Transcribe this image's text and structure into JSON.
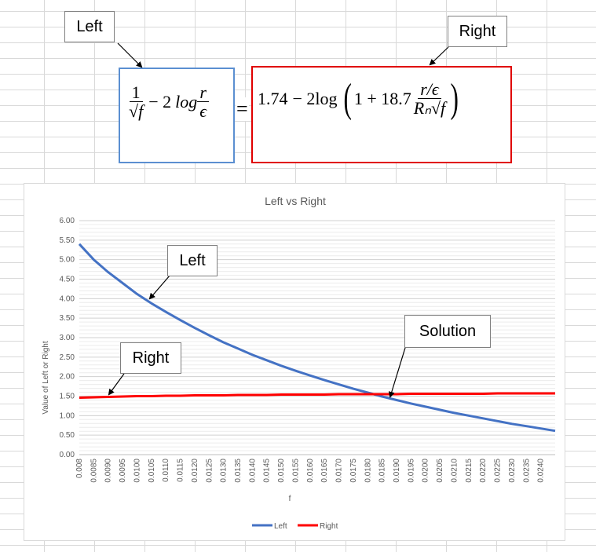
{
  "callouts": {
    "top_left": "Left",
    "top_right": "Right",
    "chart_left": "Left",
    "chart_right": "Right",
    "chart_solution": "Solution"
  },
  "equation": {
    "left": {
      "one": "1",
      "sqrt_f": "√f",
      "minus_two_log": "− 2",
      "log": "log",
      "r": "r",
      "eps": "ϵ"
    },
    "equals": "=",
    "right": {
      "const": "1.74",
      "minus_two_log": "− 2log",
      "one_plus": "1 + 18.7",
      "r_over_eps": "r/ϵ",
      "rn_sqrt_f": "Rₙ√f"
    }
  },
  "colors": {
    "left_series": "#4472c4",
    "right_series": "#ff0000",
    "left_box_border": "#5b8fd1",
    "right_box_border": "#e00000"
  },
  "chart_data": {
    "type": "line",
    "title": "Left vs Right",
    "xlabel": "f",
    "ylabel": "Value of Left or Right",
    "ylim": [
      0,
      6
    ],
    "y_ticks": [
      "0.00",
      "0.50",
      "1.00",
      "1.50",
      "2.00",
      "2.50",
      "3.00",
      "3.50",
      "4.00",
      "4.50",
      "5.00",
      "5.50",
      "6.00"
    ],
    "x_ticks": [
      "0.008",
      "0.0085",
      "0.0090",
      "0.0095",
      "0.0100",
      "0.0105",
      "0.0110",
      "0.0115",
      "0.0120",
      "0.0125",
      "0.0130",
      "0.0135",
      "0.0140",
      "0.0145",
      "0.0150",
      "0.0155",
      "0.0160",
      "0.0165",
      "0.0170",
      "0.0175",
      "0.0180",
      "0.0185",
      "0.0190",
      "0.0195",
      "0.0200",
      "0.0205",
      "0.0210",
      "0.0215",
      "0.0220",
      "0.0225",
      "0.0230",
      "0.0235",
      "0.0240"
    ],
    "x": [
      0.008,
      0.0085,
      0.009,
      0.0095,
      0.01,
      0.0105,
      0.011,
      0.0115,
      0.012,
      0.0125,
      0.013,
      0.0135,
      0.014,
      0.0145,
      0.015,
      0.0155,
      0.016,
      0.0165,
      0.017,
      0.0175,
      0.018,
      0.0185,
      0.019,
      0.0195,
      0.02,
      0.0205,
      0.021,
      0.0215,
      0.022,
      0.0225,
      0.023,
      0.0235,
      0.024,
      0.0245
    ],
    "series": [
      {
        "name": "Left",
        "values": [
          5.4,
          5.0,
          4.68,
          4.4,
          4.12,
          3.88,
          3.66,
          3.45,
          3.25,
          3.06,
          2.88,
          2.72,
          2.56,
          2.42,
          2.28,
          2.15,
          2.03,
          1.91,
          1.8,
          1.69,
          1.59,
          1.49,
          1.4,
          1.31,
          1.23,
          1.15,
          1.07,
          1.0,
          0.93,
          0.86,
          0.79,
          0.73,
          0.67,
          0.61
        ]
      },
      {
        "name": "Right",
        "values": [
          1.46,
          1.47,
          1.48,
          1.49,
          1.5,
          1.5,
          1.51,
          1.51,
          1.52,
          1.52,
          1.52,
          1.53,
          1.53,
          1.53,
          1.54,
          1.54,
          1.54,
          1.54,
          1.55,
          1.55,
          1.55,
          1.55,
          1.55,
          1.56,
          1.56,
          1.56,
          1.56,
          1.56,
          1.56,
          1.57,
          1.57,
          1.57,
          1.57,
          1.57
        ]
      }
    ],
    "gridlines": "horizontal major and minor",
    "legend": "bottom"
  }
}
